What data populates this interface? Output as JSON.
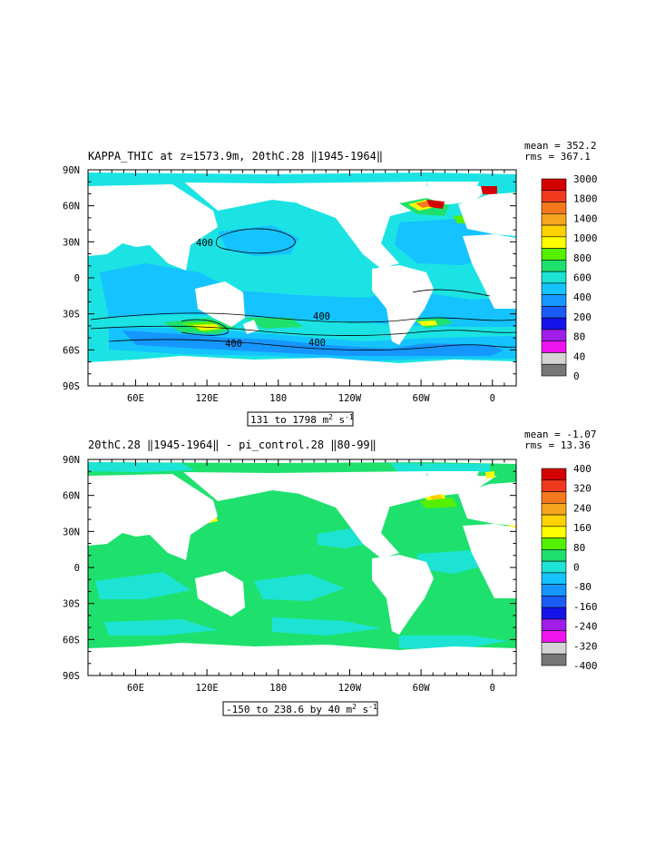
{
  "chart_data": [
    {
      "type": "heatmap",
      "title": "KAPPA_THIC at z=1573.9m, 20thC.28 ‖1945-1964‖",
      "stats": {
        "mean": "mean = 352.2",
        "rms": "rms = 367.1"
      },
      "x_ticks": [
        "60E",
        "120E",
        "180",
        "120W",
        "60W",
        "0"
      ],
      "y_ticks": [
        "90N",
        "60N",
        "30N",
        "0",
        "30S",
        "60S",
        "90S"
      ],
      "range_label": {
        "main": "131 to 1798 m",
        "sup": "2",
        "mid": " s",
        "sup2": "-1"
      },
      "colorbar": {
        "labels": [
          "3000",
          "1800",
          "1400",
          "1000",
          "800",
          "600",
          "400",
          "200",
          "80",
          "40",
          "0"
        ],
        "colors": [
          "#d40000",
          "#f03a1e",
          "#f5781e",
          "#f6a51e",
          "#ffd200",
          "#fffd00",
          "#54f000",
          "#1ee16d",
          "#1ce3d4",
          "#14c3ff",
          "#1696ff",
          "#1a5cf5",
          "#1414e8",
          "#a01ee8",
          "#ee14ee",
          "#d4d4d4",
          "#777777"
        ]
      },
      "contour_labels": [
        "400",
        "400",
        "400",
        "400"
      ]
    },
    {
      "type": "heatmap",
      "title": "20thC.28 ‖1945-1964‖ - pi_control.28 ‖80-99‖",
      "stats": {
        "mean": "mean = -1.07",
        "rms": "rms = 13.36"
      },
      "x_ticks": [
        "60E",
        "120E",
        "180",
        "120W",
        "60W",
        "0"
      ],
      "y_ticks": [
        "90N",
        "60N",
        "30N",
        "0",
        "30S",
        "60S",
        "90S"
      ],
      "range_label": {
        "main": "-150 to 238.6 by 40 m",
        "sup": "2",
        "mid": " s",
        "sup2": "-1"
      },
      "colorbar": {
        "labels": [
          "400",
          "320",
          "240",
          "160",
          "80",
          "0",
          "-80",
          "-160",
          "-240",
          "-320",
          "-400"
        ],
        "colors": [
          "#d40000",
          "#f03a1e",
          "#f5781e",
          "#f6a51e",
          "#ffd200",
          "#fffd00",
          "#54f000",
          "#1ee16d",
          "#1ce3d4",
          "#14c3ff",
          "#1696ff",
          "#1a5cf5",
          "#1414e8",
          "#a01ee8",
          "#ee14ee",
          "#d4d4d4",
          "#777777"
        ]
      }
    }
  ]
}
